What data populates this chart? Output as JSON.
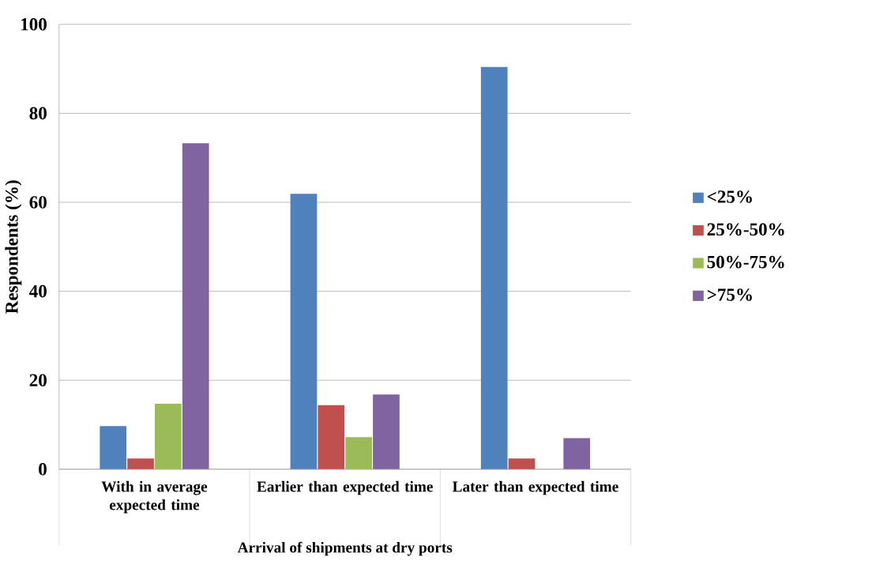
{
  "chart_data": {
    "type": "bar",
    "xlabel": "Arrival of shipments at dry ports",
    "ylabel": "Respondents (%)",
    "categories": [
      "With in average expected time",
      "Earlier than expected time",
      "Later than expected time"
    ],
    "series": [
      {
        "name": "<25%",
        "color": "#4f81bd",
        "values": [
          9.7,
          61.9,
          90.4
        ]
      },
      {
        "name": "25%-50%",
        "color": "#c0504d",
        "values": [
          2.4,
          14.4,
          2.4
        ]
      },
      {
        "name": "50%-75%",
        "color": "#9bbb59",
        "values": [
          14.7,
          7.2,
          null
        ]
      },
      {
        "name": ">75%",
        "color": "#8064a2",
        "values": [
          73.3,
          16.8,
          7.0
        ]
      }
    ],
    "ylim": [
      0,
      100
    ],
    "yticks": [
      0,
      20,
      40,
      60,
      80,
      100
    ],
    "grid": "y",
    "legend": "right"
  }
}
